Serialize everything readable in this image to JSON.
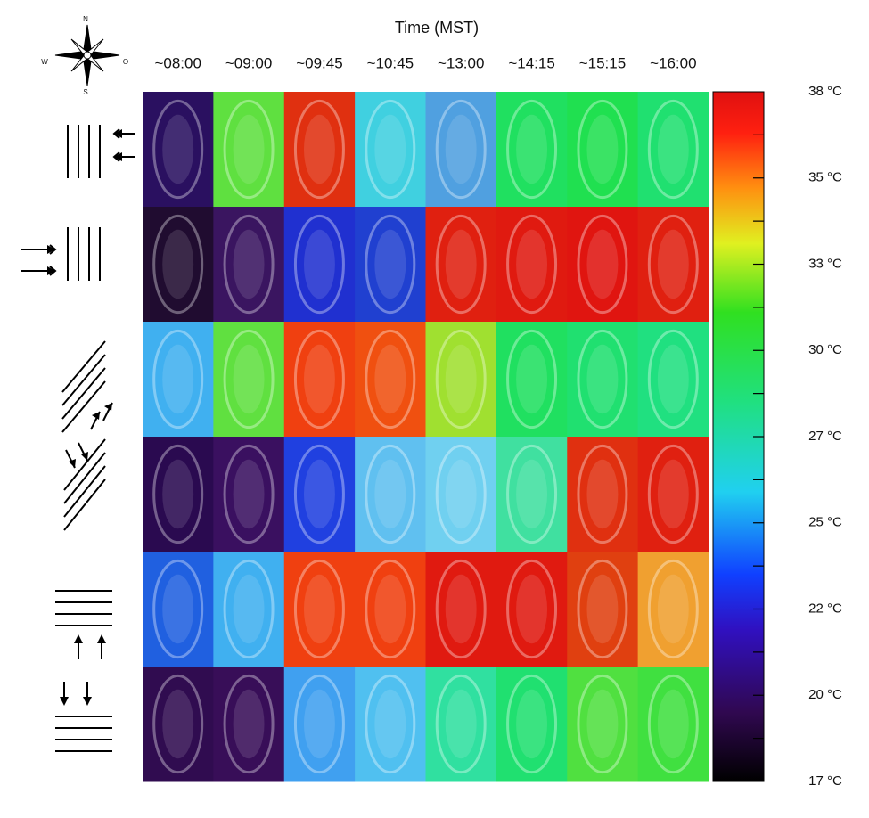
{
  "compass": {
    "north": "N",
    "south": "S",
    "west": "W",
    "east": "O"
  },
  "header": {
    "title": "Time (MST)",
    "times": [
      "~08:00",
      "~09:00",
      "~09:45",
      "~10:45",
      "~13:00",
      "~14:15",
      "~15:15",
      "~16:00"
    ]
  },
  "grid": {
    "colors": [
      [
        "#2a1060",
        "#5fe040",
        "#e03010",
        "#40d0e0",
        "#50a0e0",
        "#20e060",
        "#20e050",
        "#20e070"
      ],
      [
        "#200c30",
        "#3a1560",
        "#2030d0",
        "#2040d0",
        "#e02010",
        "#e01a10",
        "#e01510",
        "#e02010"
      ],
      [
        "#40b0f0",
        "#60e040",
        "#f04010",
        "#f05010",
        "#a0e030",
        "#20e060",
        "#20e070",
        "#20e080"
      ],
      [
        "#2a0a50",
        "#3a1060",
        "#2040e0",
        "#60c0f0",
        "#70d0f0",
        "#40e0a0",
        "#e03010",
        "#e02010"
      ],
      [
        "#2060e0",
        "#40b0f0",
        "#f04010",
        "#f04010",
        "#e01a10",
        "#e01a10",
        "#e04010",
        "#f0a030"
      ],
      [
        "#300c50",
        "#380e58",
        "#40a0f0",
        "#50c0f0",
        "#30e0a0",
        "#20e070",
        "#50e040",
        "#40e040"
      ]
    ]
  },
  "colorbar": {
    "labels": [
      "38 °C",
      "35 °C",
      "33 °C",
      "30 °C",
      "27 °C",
      "25 °C",
      "22 °C",
      "20 °C",
      "17 °C"
    ]
  }
}
